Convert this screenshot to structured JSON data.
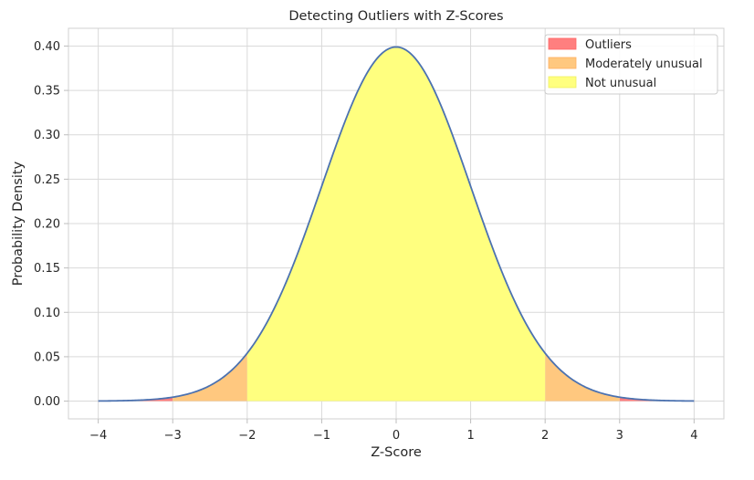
{
  "chart_data": {
    "type": "area",
    "title": "Detecting Outliers with Z-Scores",
    "xlabel": "Z-Score",
    "ylabel": "Probability Density",
    "xlim": [
      -4.4,
      4.4
    ],
    "ylim": [
      -0.02,
      0.42
    ],
    "x_ticks": [
      -4,
      -3,
      -2,
      -1,
      0,
      1,
      2,
      3,
      4
    ],
    "x_tick_labels": [
      "−4",
      "−3",
      "−2",
      "−1",
      "0",
      "1",
      "2",
      "3",
      "4"
    ],
    "y_ticks": [
      0.0,
      0.05,
      0.1,
      0.15,
      0.2,
      0.25,
      0.3,
      0.35,
      0.4
    ],
    "y_tick_labels": [
      "0.00",
      "0.05",
      "0.10",
      "0.15",
      "0.20",
      "0.25",
      "0.30",
      "0.35",
      "0.40"
    ],
    "grid": true,
    "legend_position": "top-right",
    "curve": {
      "color": "#4c72b0",
      "x": [
        -4.0,
        -3.5,
        -3.0,
        -2.5,
        -2.0,
        -1.5,
        -1.0,
        -0.5,
        0.0,
        0.5,
        1.0,
        1.5,
        2.0,
        2.5,
        3.0,
        3.5,
        4.0
      ],
      "y": [
        0.0001,
        0.0009,
        0.0044,
        0.0175,
        0.054,
        0.1295,
        0.242,
        0.3521,
        0.3989,
        0.3521,
        0.242,
        0.1295,
        0.054,
        0.0175,
        0.0044,
        0.0009,
        0.0001
      ]
    },
    "series": [
      {
        "name": "Outliers",
        "color": "#ff7f7f",
        "ranges": [
          [
            -4,
            -3
          ],
          [
            3,
            4
          ]
        ]
      },
      {
        "name": "Moderately unusual",
        "color": "#ffc87f",
        "ranges": [
          [
            -3,
            -2
          ],
          [
            2,
            3
          ]
        ]
      },
      {
        "name": "Not unusual",
        "color": "#ffff7f",
        "ranges": [
          [
            -2,
            2
          ]
        ]
      }
    ]
  }
}
